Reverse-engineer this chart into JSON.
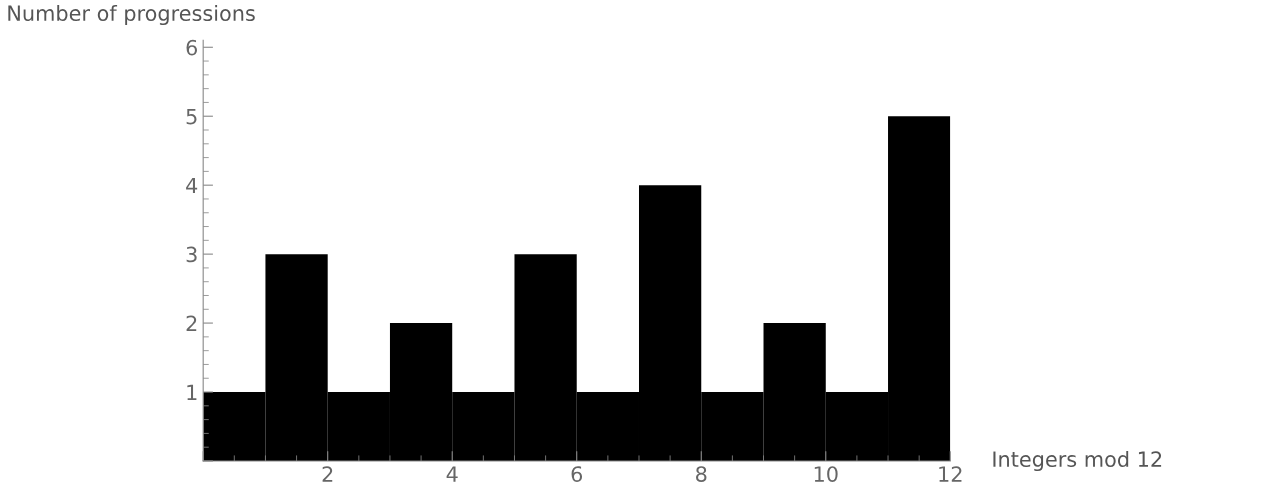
{
  "chart_data": {
    "type": "histogram",
    "xlabel": "Integers mod 12",
    "ylabel": "Number of progressions",
    "bins": [
      0,
      1,
      2,
      3,
      4,
      5,
      6,
      7,
      8,
      9,
      10,
      11,
      12
    ],
    "values": [
      1,
      3,
      1,
      2,
      1,
      3,
      1,
      4,
      1,
      2,
      1,
      5
    ],
    "color": "#000000",
    "xlim": [
      0,
      12
    ],
    "xticks": [
      {
        "value": 0,
        "label": null
      },
      2,
      4,
      6,
      8,
      10,
      12
    ],
    "ylim": [
      0,
      6.1
    ],
    "yticks": [
      {
        "value": 0,
        "label": null
      },
      1,
      2,
      3,
      4,
      5,
      6
    ],
    "grid": false
  }
}
